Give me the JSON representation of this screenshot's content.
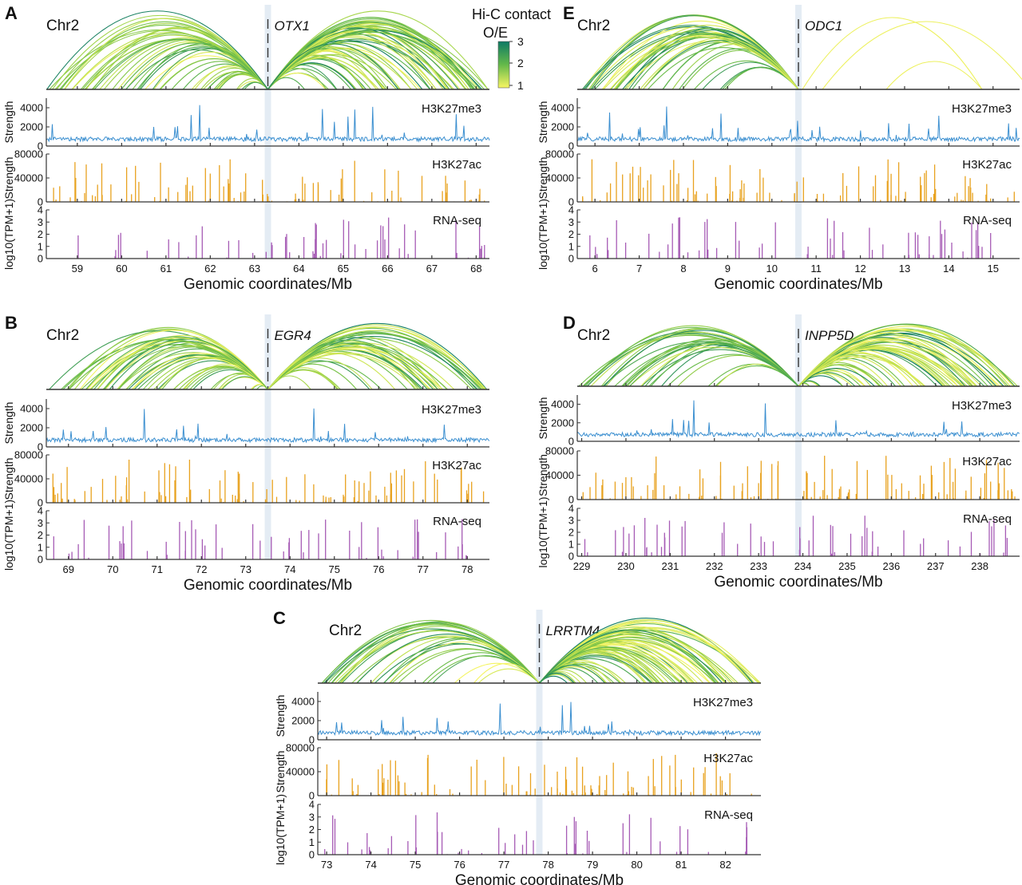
{
  "colorbar": {
    "title_line1": "Hi-C contact",
    "title_line2": "O/E",
    "ticks": [
      "3",
      "2",
      "1"
    ],
    "colors": [
      "#0e7a64",
      "#64b94a",
      "#f7f562"
    ]
  },
  "track_colors": {
    "h3k27me3": "#3b8fd0",
    "h3k27ac": "#e8a21f",
    "rnaseq": "#a65bb5"
  },
  "chart_data": [
    {
      "type": "genome-track-panel",
      "panel": "A",
      "chromosome": "Chr2",
      "gene": "OTX1",
      "gene_position_mb": 63.3,
      "x_range_mb": [
        58.3,
        68.3
      ],
      "x_ticks": [
        "59",
        "60",
        "61",
        "62",
        "63",
        "64",
        "65",
        "66",
        "67",
        "68"
      ],
      "xlabel": "Genomic coordinates/Mb",
      "tracks": [
        {
          "name": "H3K27me3",
          "ylabel": "Strength",
          "y_ticks": [
            "4000",
            "2000",
            "0"
          ],
          "ylim": [
            0,
            5000
          ]
        },
        {
          "name": "H3K27ac",
          "ylabel": "Strength",
          "y_ticks": [
            "80000",
            "40000",
            "0"
          ],
          "ylim": [
            0,
            80000
          ]
        },
        {
          "name": "RNA-seq",
          "ylabel": "log10(TPM+1)",
          "y_ticks": [
            "4",
            "3",
            "2",
            "1",
            "0"
          ],
          "ylim": [
            0,
            4
          ]
        }
      ]
    },
    {
      "type": "genome-track-panel",
      "panel": "E",
      "chromosome": "Chr2",
      "gene": "ODC1",
      "gene_position_mb": 10.6,
      "x_range_mb": [
        5.6,
        15.6
      ],
      "x_ticks": [
        "6",
        "7",
        "8",
        "9",
        "10",
        "11",
        "12",
        "13",
        "14",
        "15"
      ],
      "xlabel": "Genomic coordinates/Mb",
      "tracks": [
        {
          "name": "H3K27me3",
          "ylabel": "Strength",
          "y_ticks": [
            "4000",
            "2000",
            "0"
          ],
          "ylim": [
            0,
            5000
          ]
        },
        {
          "name": "H3K27ac",
          "ylabel": "Strength",
          "y_ticks": [
            "80000",
            "40000",
            "0"
          ],
          "ylim": [
            0,
            80000
          ]
        },
        {
          "name": "RNA-seq",
          "ylabel": "log10(TPM+1)",
          "y_ticks": [
            "4",
            "3",
            "2",
            "1",
            "0"
          ],
          "ylim": [
            0,
            4
          ]
        }
      ]
    },
    {
      "type": "genome-track-panel",
      "panel": "B",
      "chromosome": "Chr2",
      "gene": "EGR4",
      "gene_position_mb": 73.5,
      "x_range_mb": [
        68.5,
        78.5
      ],
      "x_ticks": [
        "69",
        "70",
        "71",
        "72",
        "73",
        "74",
        "75",
        "76",
        "77",
        "78"
      ],
      "xlabel": "Genomic coordinates/Mb",
      "tracks": [
        {
          "name": "H3K27me3",
          "ylabel": "Strength",
          "y_ticks": [
            "4000",
            "2000",
            "0"
          ],
          "ylim": [
            0,
            5000
          ]
        },
        {
          "name": "H3K27ac",
          "ylabel": "Strength",
          "y_ticks": [
            "80000",
            "40000",
            "0"
          ],
          "ylim": [
            0,
            80000
          ]
        },
        {
          "name": "RNA-seq",
          "ylabel": "log10(TPM+1)",
          "y_ticks": [
            "4",
            "3",
            "2",
            "1",
            "0"
          ],
          "ylim": [
            0,
            4
          ]
        }
      ]
    },
    {
      "type": "genome-track-panel",
      "panel": "D",
      "chromosome": "Chr2",
      "gene": "INPP5D",
      "gene_position_mb": 233.9,
      "x_range_mb": [
        228.9,
        238.9
      ],
      "x_ticks": [
        "229",
        "230",
        "231",
        "232",
        "233",
        "234",
        "235",
        "236",
        "237",
        "238"
      ],
      "xlabel": "Genomic coordinates/Mb",
      "tracks": [
        {
          "name": "H3K27me3",
          "ylabel": "Strength",
          "y_ticks": [
            "4000",
            "2000",
            "0"
          ],
          "ylim": [
            0,
            5000
          ]
        },
        {
          "name": "H3K27ac",
          "ylabel": "Strength",
          "y_ticks": [
            "80000",
            "40000",
            "0"
          ],
          "ylim": [
            0,
            80000
          ]
        },
        {
          "name": "RNA-seq",
          "ylabel": "log10(TPM+1)",
          "y_ticks": [
            "4",
            "3",
            "2",
            "1",
            "0"
          ],
          "ylim": [
            0,
            4
          ]
        }
      ]
    },
    {
      "type": "genome-track-panel",
      "panel": "C",
      "chromosome": "Chr2",
      "gene": "LRRTM4",
      "gene_position_mb": 77.8,
      "x_range_mb": [
        72.8,
        82.8
      ],
      "x_ticks": [
        "73",
        "74",
        "75",
        "76",
        "77",
        "78",
        "79",
        "80",
        "81",
        "82"
      ],
      "xlabel": "Genomic coordinates/Mb",
      "tracks": [
        {
          "name": "H3K27me3",
          "ylabel": "Strength",
          "y_ticks": [
            "4000",
            "2000",
            "0"
          ],
          "ylim": [
            0,
            5000
          ]
        },
        {
          "name": "H3K27ac",
          "ylabel": "Strength",
          "y_ticks": [
            "80000",
            "40000",
            "0"
          ],
          "ylim": [
            0,
            80000
          ]
        },
        {
          "name": "RNA-seq",
          "ylabel": "log10(TPM+1)",
          "y_ticks": [
            "4",
            "3",
            "2",
            "1",
            "0"
          ],
          "ylim": [
            0,
            4
          ]
        }
      ]
    }
  ]
}
